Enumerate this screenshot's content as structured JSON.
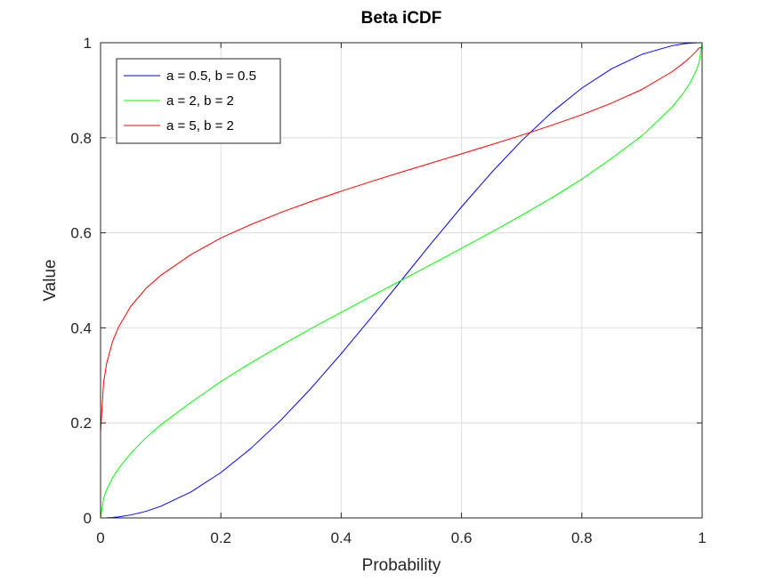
{
  "chart_data": {
    "type": "line",
    "title": "Beta iCDF",
    "xlabel": "Probability",
    "ylabel": "Value",
    "xlim": [
      0,
      1
    ],
    "ylim": [
      0,
      1
    ],
    "xticks": [
      0,
      0.2,
      0.4,
      0.6,
      0.8,
      1
    ],
    "xtick_labels": [
      "0",
      "0.2",
      "0.4",
      "0.6",
      "0.8",
      "1"
    ],
    "yticks": [
      0,
      0.2,
      0.4,
      0.6,
      0.8,
      1
    ],
    "ytick_labels": [
      "0",
      "0.2",
      "0.4",
      "0.6",
      "0.8",
      "1"
    ],
    "grid": true,
    "legend_position": "top-left",
    "x": [
      0,
      0.005,
      0.01,
      0.02,
      0.03,
      0.05,
      0.075,
      0.1,
      0.15,
      0.2,
      0.25,
      0.3,
      0.35,
      0.4,
      0.45,
      0.5,
      0.55,
      0.6,
      0.65,
      0.7,
      0.75,
      0.8,
      0.85,
      0.9,
      0.95,
      0.97,
      0.98,
      0.99,
      0.995,
      1
    ],
    "series": [
      {
        "name": "a = 0.5, b = 0.5",
        "color": "#0000ff",
        "values": [
          0,
          0.0001,
          0.0002,
          0.001,
          0.0022,
          0.0062,
          0.0137,
          0.0245,
          0.0545,
          0.0955,
          0.1464,
          0.2061,
          0.273,
          0.3455,
          0.4218,
          0.5,
          0.5782,
          0.6545,
          0.727,
          0.7939,
          0.8536,
          0.9045,
          0.9455,
          0.9755,
          0.9938,
          0.9978,
          0.999,
          0.9998,
          0.9999,
          1
        ]
      },
      {
        "name": "a = 2, b = 2",
        "color": "#00ff00",
        "values": [
          0,
          0.0414,
          0.0589,
          0.0843,
          0.104,
          0.1357,
          0.1681,
          0.1958,
          0.243,
          0.2871,
          0.3264,
          0.3632,
          0.3985,
          0.4327,
          0.4664,
          0.5,
          0.5336,
          0.5673,
          0.6015,
          0.6368,
          0.6736,
          0.7129,
          0.757,
          0.8042,
          0.8643,
          0.896,
          0.9157,
          0.9411,
          0.9586,
          1
        ]
      },
      {
        "name": "a = 5, b = 2",
        "color": "#ff0000",
        "values": [
          0.18,
          0.2848,
          0.3245,
          0.3714,
          0.402,
          0.445,
          0.4824,
          0.5104,
          0.554,
          0.589,
          0.6175,
          0.6429,
          0.666,
          0.6876,
          0.708,
          0.7277,
          0.747,
          0.7662,
          0.7856,
          0.8054,
          0.8264,
          0.8484,
          0.8732,
          0.9017,
          0.9389,
          0.9582,
          0.9692,
          0.9816,
          0.9891,
          0.99
        ]
      }
    ]
  }
}
